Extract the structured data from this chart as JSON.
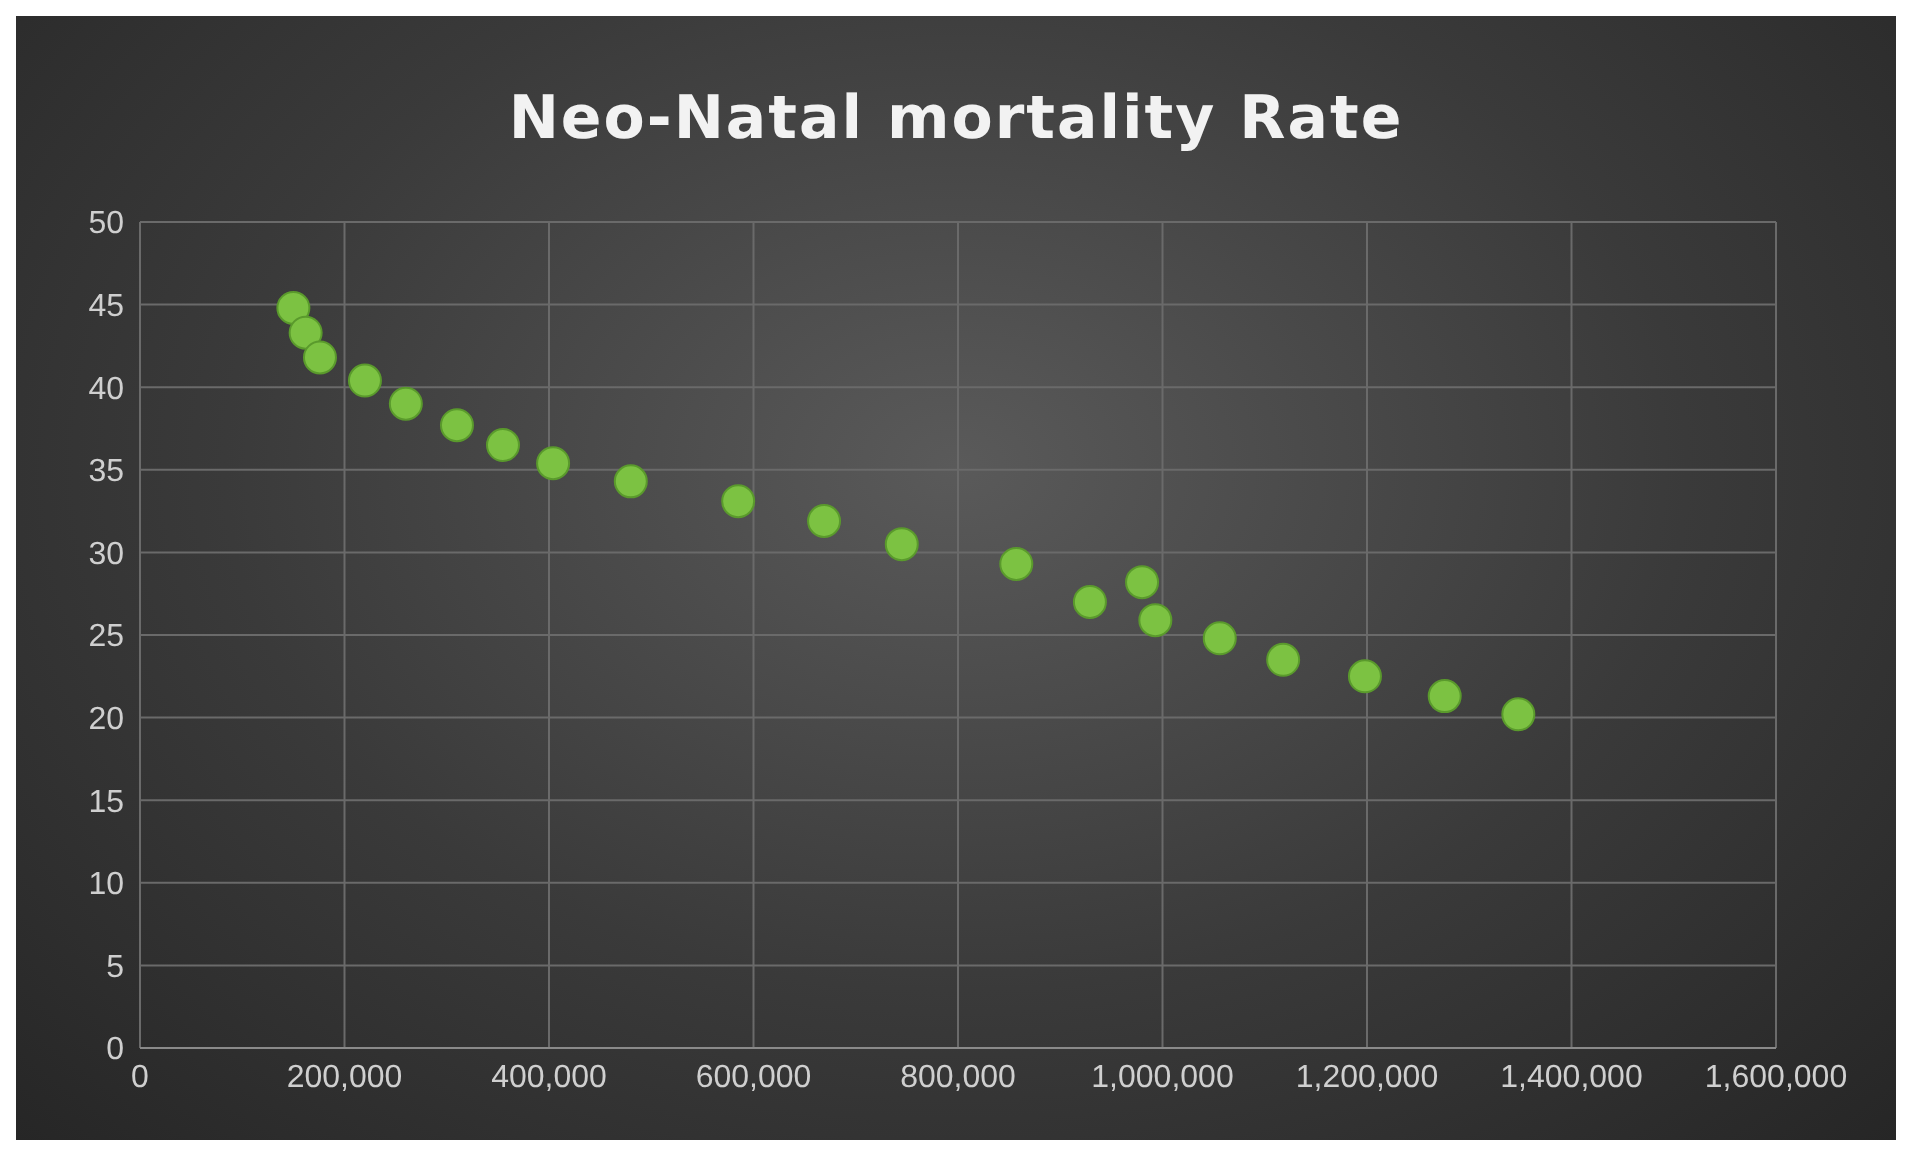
{
  "chart_data": {
    "type": "scatter",
    "title": "Neo-Natal mortality Rate",
    "x": [
      150000,
      162000,
      176000,
      220000,
      260000,
      310000,
      355000,
      404000,
      480000,
      585000,
      669000,
      745000,
      857000,
      929000,
      980000,
      993000,
      1056000,
      1118000,
      1198000,
      1276000,
      1348000
    ],
    "values": [
      44.8,
      43.3,
      41.8,
      40.4,
      39.0,
      37.7,
      36.5,
      35.4,
      34.3,
      33.1,
      31.9,
      30.5,
      29.3,
      27.0,
      28.2,
      25.9,
      24.8,
      23.5,
      22.5,
      21.3,
      20.2
    ],
    "color": "#7cc242",
    "marker": "circle",
    "xlim": [
      0,
      1600000
    ],
    "xticks": [
      0,
      {
        "value": 200000,
        "label": "200,000"
      },
      {
        "value": 400000,
        "label": "400,000"
      },
      {
        "value": 600000,
        "label": "600,000"
      },
      {
        "value": 800000,
        "label": "800,000"
      },
      {
        "value": 1000000,
        "label": "1,000,000"
      },
      {
        "value": 1200000,
        "label": "1,200,000"
      },
      {
        "value": 1400000,
        "label": "1,400,000"
      },
      {
        "value": 1600000,
        "label": "1,600,000"
      }
    ],
    "ylim": [
      0,
      50
    ],
    "yticks": [
      0,
      5,
      10,
      15,
      20,
      25,
      30,
      35,
      40,
      45,
      50
    ],
    "grid": true,
    "legend": false
  }
}
